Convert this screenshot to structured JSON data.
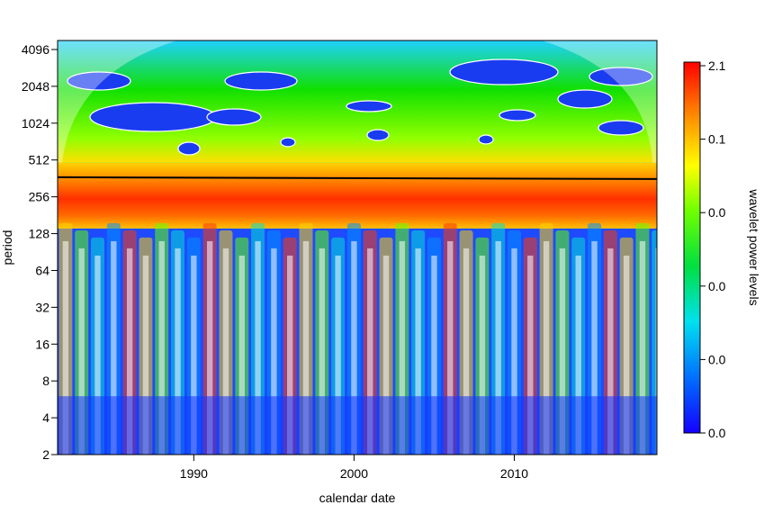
{
  "chart_data": {
    "type": "heatmap",
    "title": "",
    "xlabel": "calendar date",
    "ylabel": "period",
    "colorbar_label": "wavelet power levels",
    "x_ticks": [
      1990,
      2000,
      2010
    ],
    "xlim": [
      1981.5,
      2018.9
    ],
    "y_ticks": [
      2,
      4,
      8,
      16,
      32,
      64,
      128,
      256,
      512,
      1024,
      2048,
      4096
    ],
    "ylim": [
      2,
      5500
    ],
    "y_scale": "log2",
    "colorbar_ticks": [
      "2.1",
      "0.1",
      "0.0",
      "0.0",
      "0.0",
      "0.0"
    ],
    "colorscale": [
      "#0000ff",
      "#0096ff",
      "#00e6e6",
      "#00e600",
      "#96ff00",
      "#ffff00",
      "#ffaa00",
      "#ff5000",
      "#e60000"
    ],
    "features": {
      "high_power_band_period": [
        256,
        512
      ],
      "ridge_line_period": 370,
      "seasonal_stripes_period_range": [
        2,
        128
      ],
      "cone_of_influence": "shaded outside"
    }
  }
}
